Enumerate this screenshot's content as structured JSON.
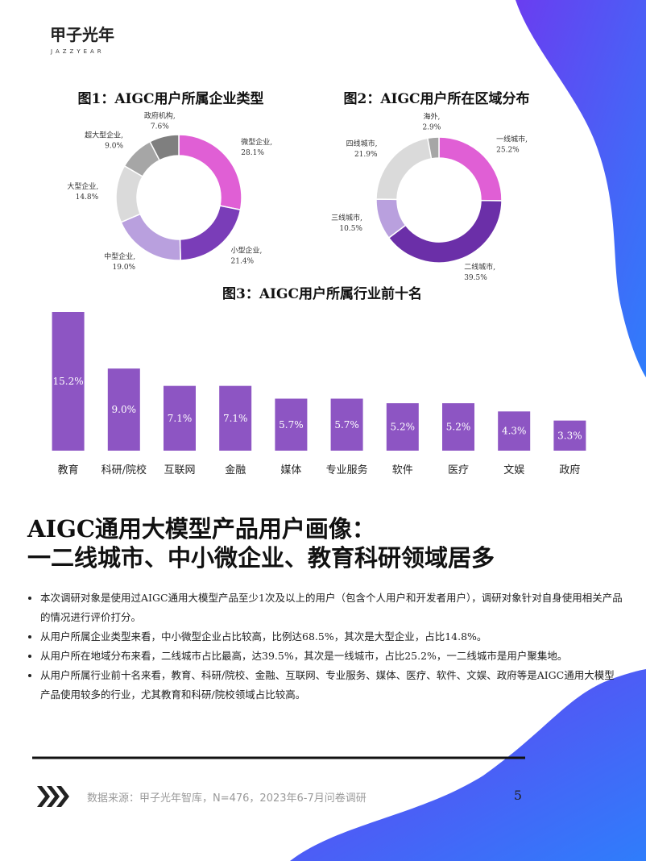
{
  "header": {
    "logo": "甲子光年",
    "logo_sub": "JAZZYEAR"
  },
  "chart_data": [
    {
      "type": "pie",
      "title": "图1：AIGC用户所属企业类型",
      "categories": [
        "微型企业,",
        "小型企业,",
        "中型企业,",
        "大型企业,",
        "超大型企业,",
        "政府机构,"
      ],
      "values": [
        28.1,
        21.4,
        19.0,
        14.8,
        9.0,
        7.6
      ],
      "value_labels": [
        "28.1%",
        "21.4%",
        "19.0%",
        "14.8%",
        "9.0%",
        "7.6%"
      ],
      "colors": [
        "#e05fd5",
        "#7a3db8",
        "#b9a0de",
        "#dadada",
        "#a6a6a6",
        "#7f7f7f"
      ]
    },
    {
      "type": "pie",
      "title": "图2：AIGC用户所在区域分布",
      "categories": [
        "一线城市,",
        "二线城市,",
        "三线城市,",
        "四线城市,",
        "海外,"
      ],
      "values": [
        25.2,
        39.5,
        10.5,
        21.9,
        2.9
      ],
      "value_labels": [
        "25.2%",
        "39.5%",
        "10.5%",
        "21.9%",
        "2.9%"
      ],
      "colors": [
        "#e05fd5",
        "#6b2fa8",
        "#b9a0de",
        "#dadada",
        "#a6a6a6"
      ]
    },
    {
      "type": "bar",
      "title": "图3：AIGC用户所属行业前十名",
      "categories": [
        "教育",
        "科研/院校",
        "互联网",
        "金融",
        "媒体",
        "专业服务",
        "软件",
        "医疗",
        "文娱",
        "政府"
      ],
      "values": [
        15.2,
        9.0,
        7.1,
        7.1,
        5.7,
        5.7,
        5.2,
        5.2,
        4.3,
        3.3
      ],
      "value_labels": [
        "15.2%",
        "9.0%",
        "7.1%",
        "7.1%",
        "5.7%",
        "5.7%",
        "5.2%",
        "5.2%",
        "4.3%",
        "3.3%"
      ],
      "color": "#8d55c3"
    }
  ],
  "headline": [
    "AIGC通用大模型产品用户画像：",
    "一二线城市、中小微企业、教育科研领域居多"
  ],
  "bullets": [
    "本次调研对象是使用过AIGC通用大模型产品至少1次及以上的用户（包含个人用户和开发者用户），调研对象针对自身使用相关产品的情况进行评价打分。",
    "从用户所属企业类型来看，中小微型企业占比较高，比例达68.5%，其次是大型企业，占比14.8%。",
    "从用户所在地域分布来看，二线城市占比最高，达39.5%，其次是一线城市，占比25.2%，一二线城市是用户聚集地。",
    "从用户所属行业前十名来看，教育、科研/院校、金融、互联网、专业服务、媒体、医疗、软件、文娱、政府等是AIGC通用大模型产品使用较多的行业，尤其教育和科研/院校领域占比较高。"
  ],
  "footer": {
    "source": "数据来源：甲子光年智库，N=476，2023年6-7月问卷调研",
    "page": 5
  }
}
